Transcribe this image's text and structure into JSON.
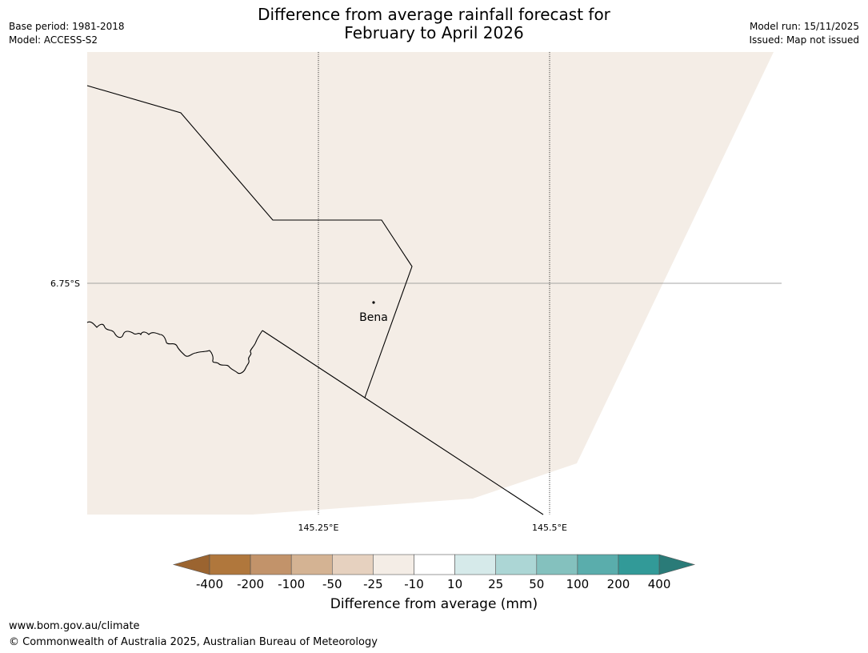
{
  "header": {
    "title_line1": "Difference from average rainfall forecast for",
    "title_line2": "February to April 2026",
    "base_period": "Base period: 1981-2018",
    "model": "Model: ACCESS-S2",
    "model_run": "Model run: 15/11/2025",
    "issued": "Issued: Map not issued"
  },
  "map": {
    "fill_color": "#f4ede6",
    "lat_label": "6.75°S",
    "lon_labels": [
      "145.25°E",
      "145.5°E"
    ],
    "place_name": "Bena"
  },
  "colorbar": {
    "colors": [
      "#9b6430",
      "#b0773c",
      "#c2936a",
      "#d4b393",
      "#e6d1bf",
      "#f4ede6",
      "#ffffff",
      "#d6eaea",
      "#acd6d5",
      "#84c1be",
      "#5aadac",
      "#329a98",
      "#2a7b78"
    ],
    "tick_labels": [
      "-400",
      "-200",
      "-100",
      "-50",
      "-25",
      "-10",
      "10",
      "25",
      "50",
      "100",
      "200",
      "400"
    ],
    "title": "Difference from average (mm)"
  },
  "footer": {
    "url": "www.bom.gov.au/climate",
    "copyright": "© Commonwealth of Australia 2025, Australian Bureau of Meteorology"
  }
}
